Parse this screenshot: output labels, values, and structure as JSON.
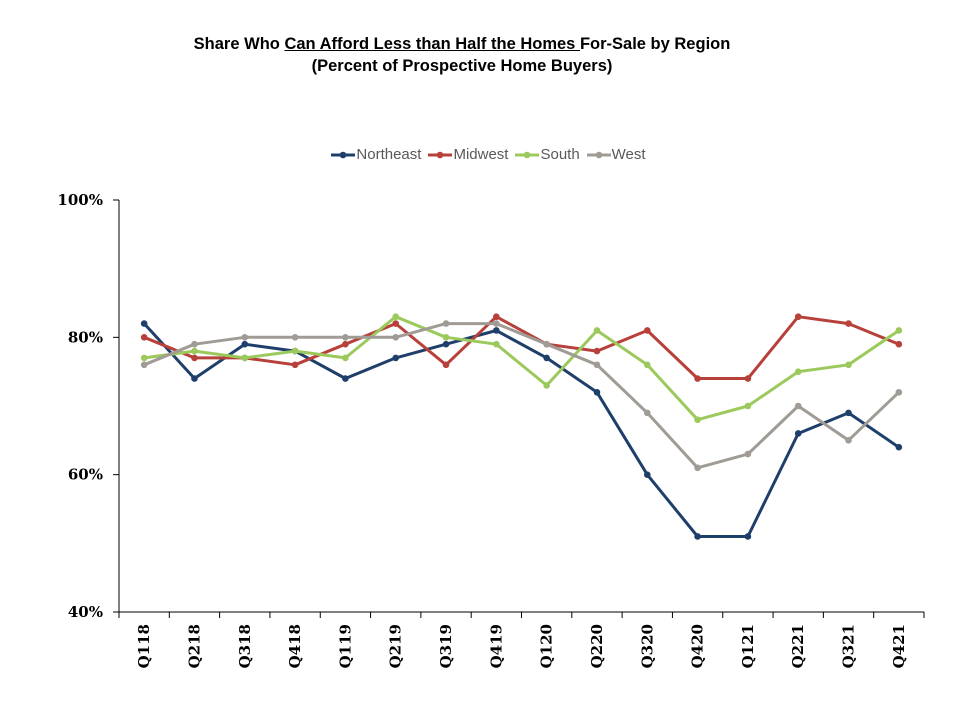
{
  "title": {
    "prefix": "Share Who ",
    "underlined": "Can Afford Less than Half the Homes ",
    "suffix": "For-Sale by Region",
    "subtitle": "(Percent of Prospective Home Buyers)"
  },
  "chart_data": {
    "type": "line",
    "categories": [
      "Q118",
      "Q218",
      "Q318",
      "Q418",
      "Q119",
      "Q219",
      "Q319",
      "Q419",
      "Q120",
      "Q220",
      "Q320",
      "Q420",
      "Q121",
      "Q221",
      "Q321",
      "Q421"
    ],
    "ylim": [
      40,
      100
    ],
    "yticks": [
      40,
      60,
      80,
      100
    ],
    "ytick_labels": [
      "40%",
      "60%",
      "80%",
      "100%"
    ],
    "legend_position": "top-center",
    "grid": false,
    "series": [
      {
        "name": "Northeast",
        "color": "#1F3F6B",
        "values": [
          82,
          74,
          79,
          78,
          74,
          77,
          79,
          81,
          77,
          72,
          60,
          51,
          51,
          66,
          69,
          64
        ]
      },
      {
        "name": "Midwest",
        "color": "#B8403A",
        "values": [
          80,
          77,
          77,
          76,
          79,
          82,
          76,
          83,
          79,
          78,
          81,
          74,
          74,
          83,
          82,
          79
        ]
      },
      {
        "name": "South",
        "color": "#9BC95C",
        "values": [
          77,
          78,
          77,
          78,
          77,
          83,
          80,
          79,
          73,
          81,
          76,
          68,
          70,
          75,
          76,
          81
        ]
      },
      {
        "name": "West",
        "color": "#A09B94",
        "values": [
          76,
          79,
          80,
          80,
          80,
          80,
          82,
          82,
          79,
          76,
          69,
          61,
          63,
          70,
          65,
          72
        ]
      }
    ]
  }
}
